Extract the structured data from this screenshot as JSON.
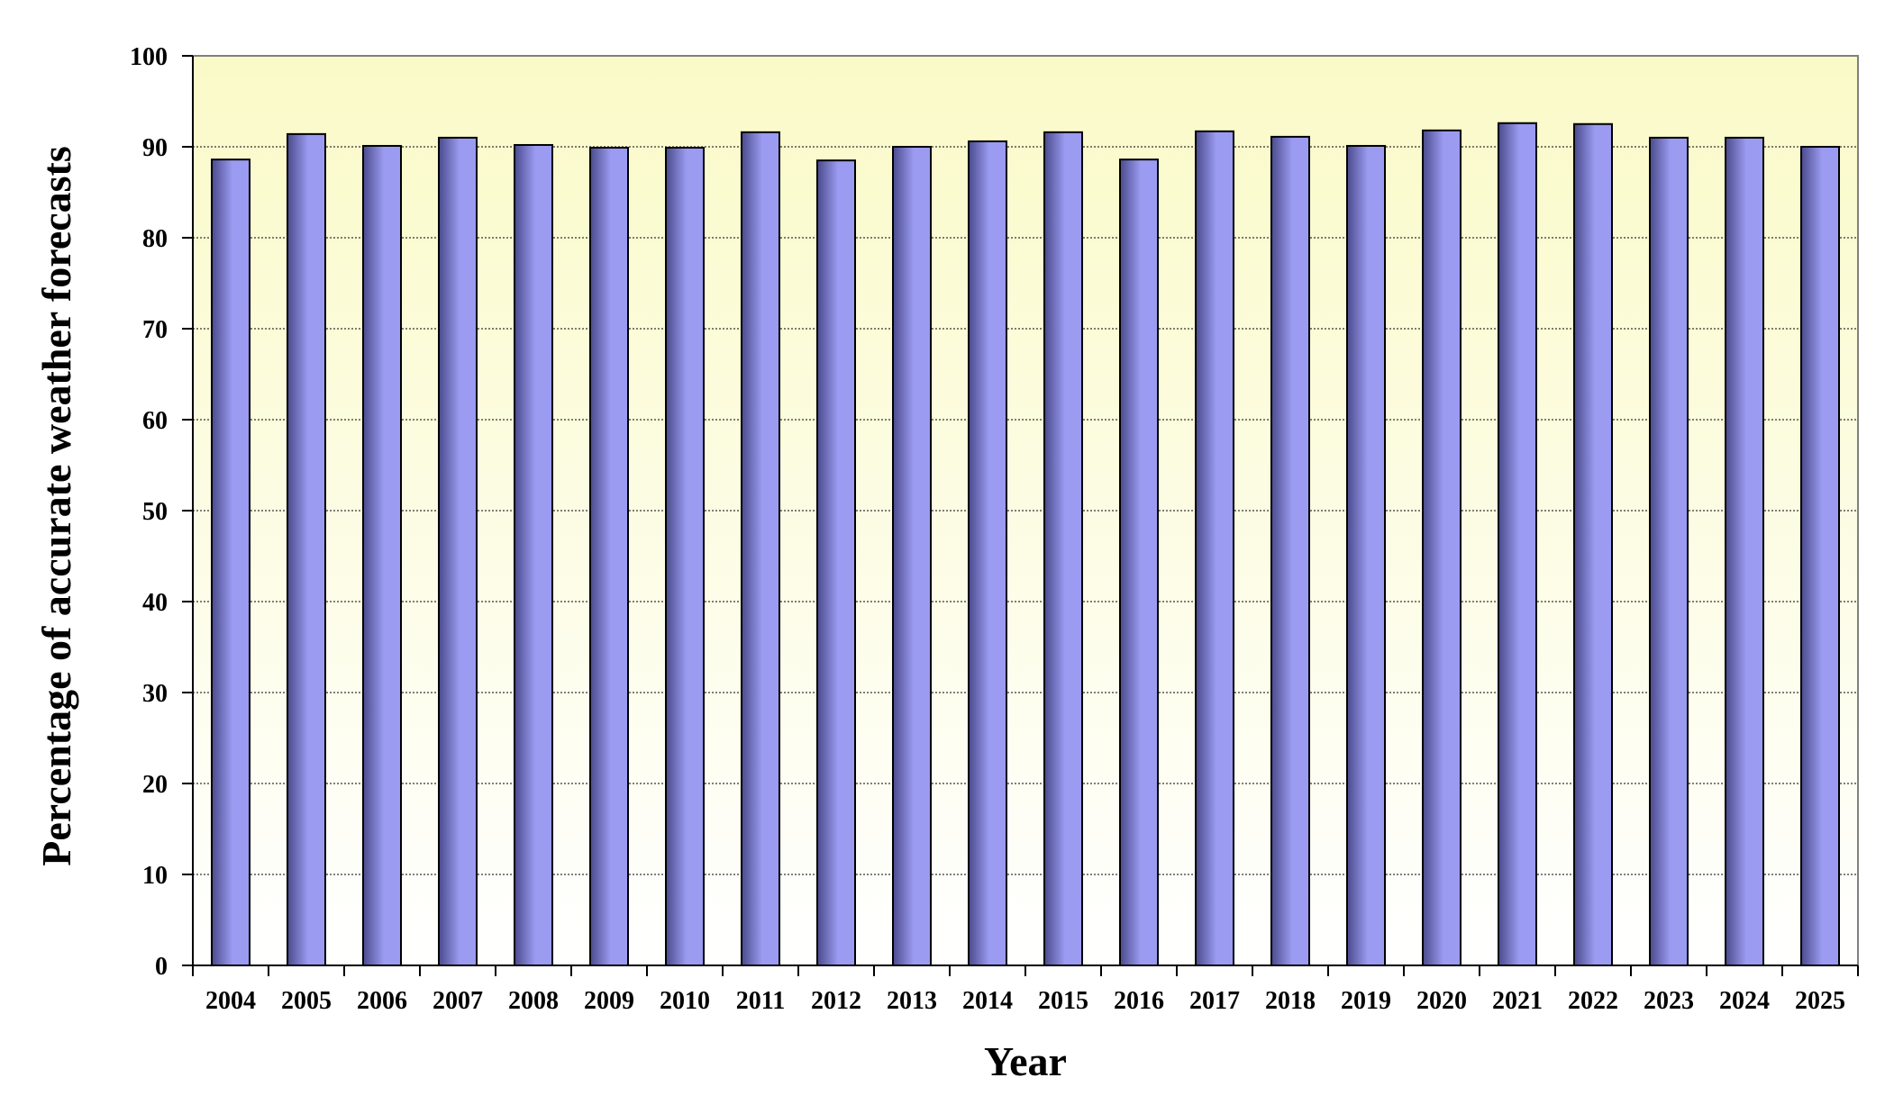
{
  "chart_data": {
    "type": "bar",
    "title": "",
    "xlabel": "Year",
    "ylabel": "Percentage of accurate weather forecasts",
    "categories": [
      "2004",
      "2005",
      "2006",
      "2007",
      "2008",
      "2009",
      "2010",
      "2011",
      "2012",
      "2013",
      "2014",
      "2015",
      "2016",
      "2017",
      "2018",
      "2019",
      "2020",
      "2021",
      "2022",
      "2023",
      "2024",
      "2025"
    ],
    "values": [
      88.6,
      91.4,
      90.1,
      91.0,
      90.2,
      89.9,
      89.9,
      91.6,
      88.5,
      90.0,
      90.6,
      91.6,
      88.6,
      91.7,
      91.1,
      90.1,
      91.8,
      92.6,
      92.5,
      91.0,
      91.0,
      90.0
    ],
    "ylim": [
      0,
      100
    ],
    "yticks": [
      0,
      10,
      20,
      30,
      40,
      50,
      60,
      70,
      80,
      90,
      100
    ],
    "grid": true,
    "legend": "none",
    "colors": {
      "bar_fill_light": "#9b9bf2",
      "bar_fill_dark": "#4a4a8c",
      "bar_stroke": "#000000",
      "plot_bg_top": "#fafac8",
      "plot_bg_bottom": "#ffffff",
      "grid": "#000000"
    }
  }
}
